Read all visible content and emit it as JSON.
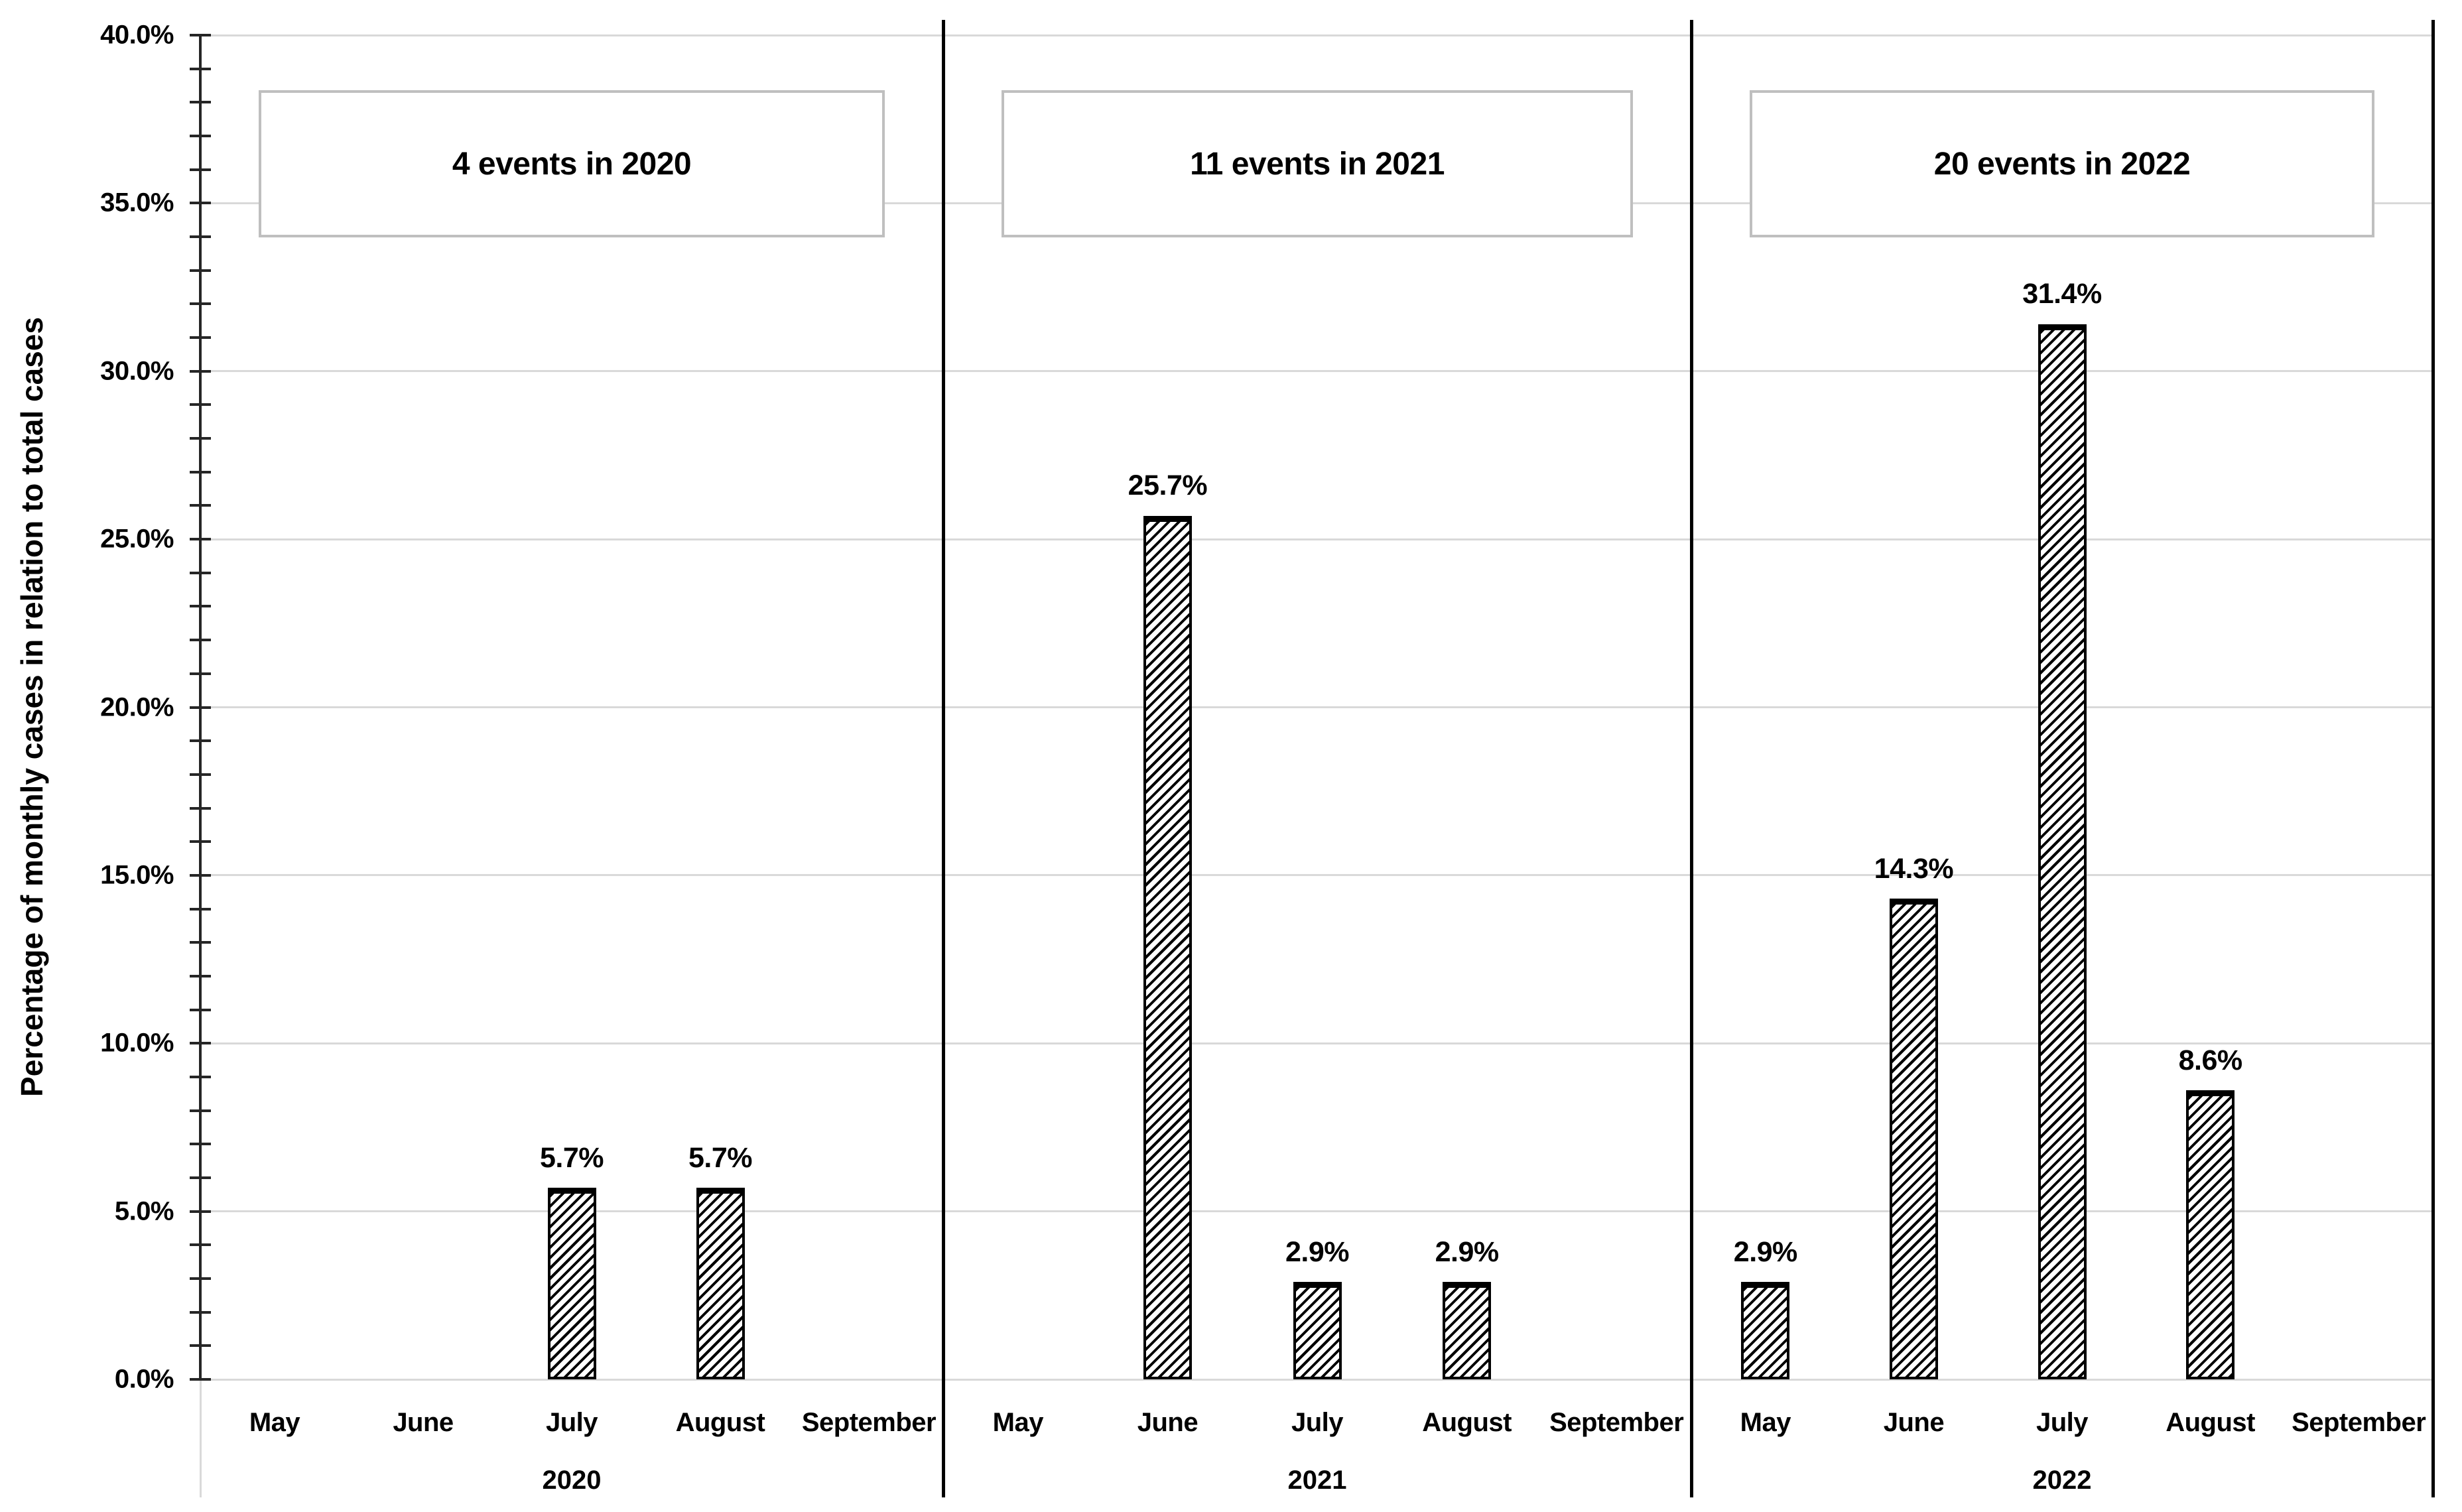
{
  "page": {
    "background": "#ffffff"
  },
  "y_axis": {
    "title": "Percentage of monthly cases in relation to total cases",
    "tick_labels": [
      "0.0%",
      "5.0%",
      "10.0%",
      "15.0%",
      "20.0%",
      "25.0%",
      "30.0%",
      "35.0%",
      "40.0%"
    ]
  },
  "chart_data": {
    "type": "bar",
    "title": "",
    "categories": [
      "May",
      "June",
      "July",
      "August",
      "September"
    ],
    "xlabel": "",
    "ylabel": "Percentage of monthly cases in relation to total cases",
    "ylim": [
      0,
      40
    ],
    "y_major_step": 5,
    "y_minor_step": 1,
    "grid": "horizontal major gridlines",
    "legend": "none",
    "bar_style": "white fill with black diagonal hatch, black border",
    "panels": [
      {
        "year": "2020",
        "annotation": "4 events in 2020",
        "values": [
          0,
          0,
          5.7,
          5.7,
          0
        ],
        "bar_labels": [
          "",
          "",
          "5.7%",
          "5.7%",
          ""
        ]
      },
      {
        "year": "2021",
        "annotation": "11 events in 2021",
        "values": [
          0,
          25.7,
          2.9,
          2.9,
          0
        ],
        "bar_labels": [
          "",
          "25.7%",
          "2.9%",
          "2.9%",
          ""
        ]
      },
      {
        "year": "2022",
        "annotation": "20 events in 2022",
        "values": [
          2.9,
          14.3,
          31.4,
          8.6,
          0
        ],
        "bar_labels": [
          "2.9%",
          "14.3%",
          "31.4%",
          "8.6%",
          ""
        ]
      }
    ]
  },
  "colors": {
    "text": "#000000",
    "gridline": "#d9d9d9",
    "axis": "#262626",
    "separator": "#000000",
    "annotation_border": "#bfbfbf",
    "bar_border": "#000000",
    "bar_fill": "#ffffff"
  }
}
